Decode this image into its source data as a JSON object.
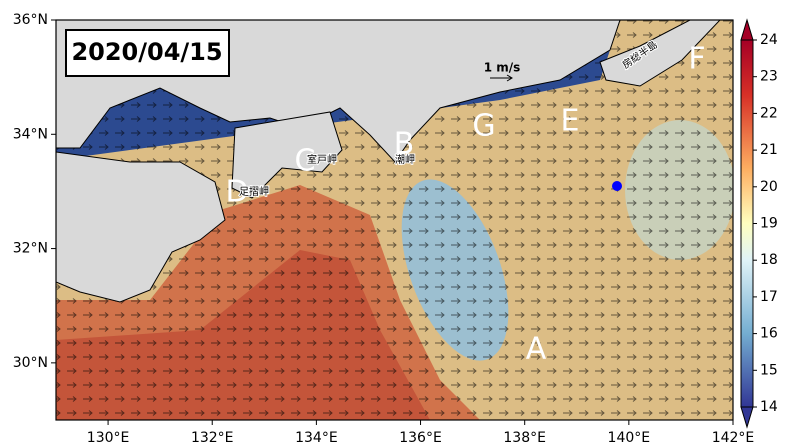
{
  "map": {
    "date": "2020/04/15",
    "lonlim": [
      129,
      142
    ],
    "latlim": [
      29,
      36
    ],
    "xticks": [
      {
        "value": 130,
        "label": "130°E"
      },
      {
        "value": 132,
        "label": "132°E"
      },
      {
        "value": 134,
        "label": "134°E"
      },
      {
        "value": 136,
        "label": "136°E"
      },
      {
        "value": 138,
        "label": "138°E"
      },
      {
        "value": 140,
        "label": "140°E"
      },
      {
        "value": 142,
        "label": "142°E"
      }
    ],
    "yticks": [
      {
        "value": 30,
        "label": "30°N"
      },
      {
        "value": 32,
        "label": "32°N"
      },
      {
        "value": 34,
        "label": "34°N"
      },
      {
        "value": 36,
        "label": "36°N"
      }
    ],
    "colorbar": {
      "lim": [
        14,
        24
      ],
      "ticks": [
        14,
        15,
        16,
        17,
        18,
        19,
        20,
        21,
        22,
        23,
        24
      ]
    },
    "regions": [
      "A",
      "B",
      "C",
      "D",
      "E",
      "F",
      "G"
    ],
    "places": [
      "室戸岬",
      "足摺岬",
      "潮岬",
      "房総半島"
    ],
    "scale_label": "1 m/s"
  }
}
